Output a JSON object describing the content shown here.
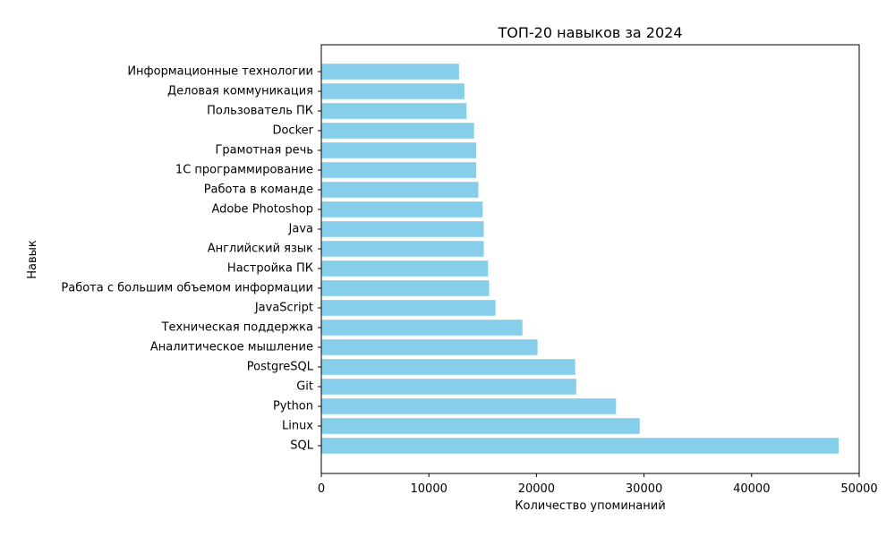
{
  "chart_data": {
    "type": "bar",
    "orientation": "horizontal",
    "title": "ТОП-20 навыков за 2024",
    "xlabel": "Количество упоминаний",
    "ylabel": "Навык",
    "xlim": [
      0,
      50000
    ],
    "xticks": [
      0,
      10000,
      20000,
      30000,
      40000,
      50000
    ],
    "grid": false,
    "bar_color": "#87ceeb",
    "categories": [
      "SQL",
      "Linux",
      "Python",
      "Git",
      "PostgreSQL",
      "Аналитическое мышление",
      "Техническая поддержка",
      "JavaScript",
      "Работа с большим объемом информации",
      "Настройка ПК",
      "Английский язык",
      "Java",
      "Adobe Photoshop",
      "Работа в команде",
      "1С программирование",
      "Грамотная речь",
      "Docker",
      "Пользователь ПК",
      "Деловая коммуникация",
      "Информационные технологии"
    ],
    "values": [
      48100,
      29600,
      27400,
      23700,
      23600,
      20100,
      18700,
      16200,
      15600,
      15500,
      15100,
      15100,
      15000,
      14600,
      14400,
      14400,
      14200,
      13500,
      13300,
      12800
    ]
  }
}
